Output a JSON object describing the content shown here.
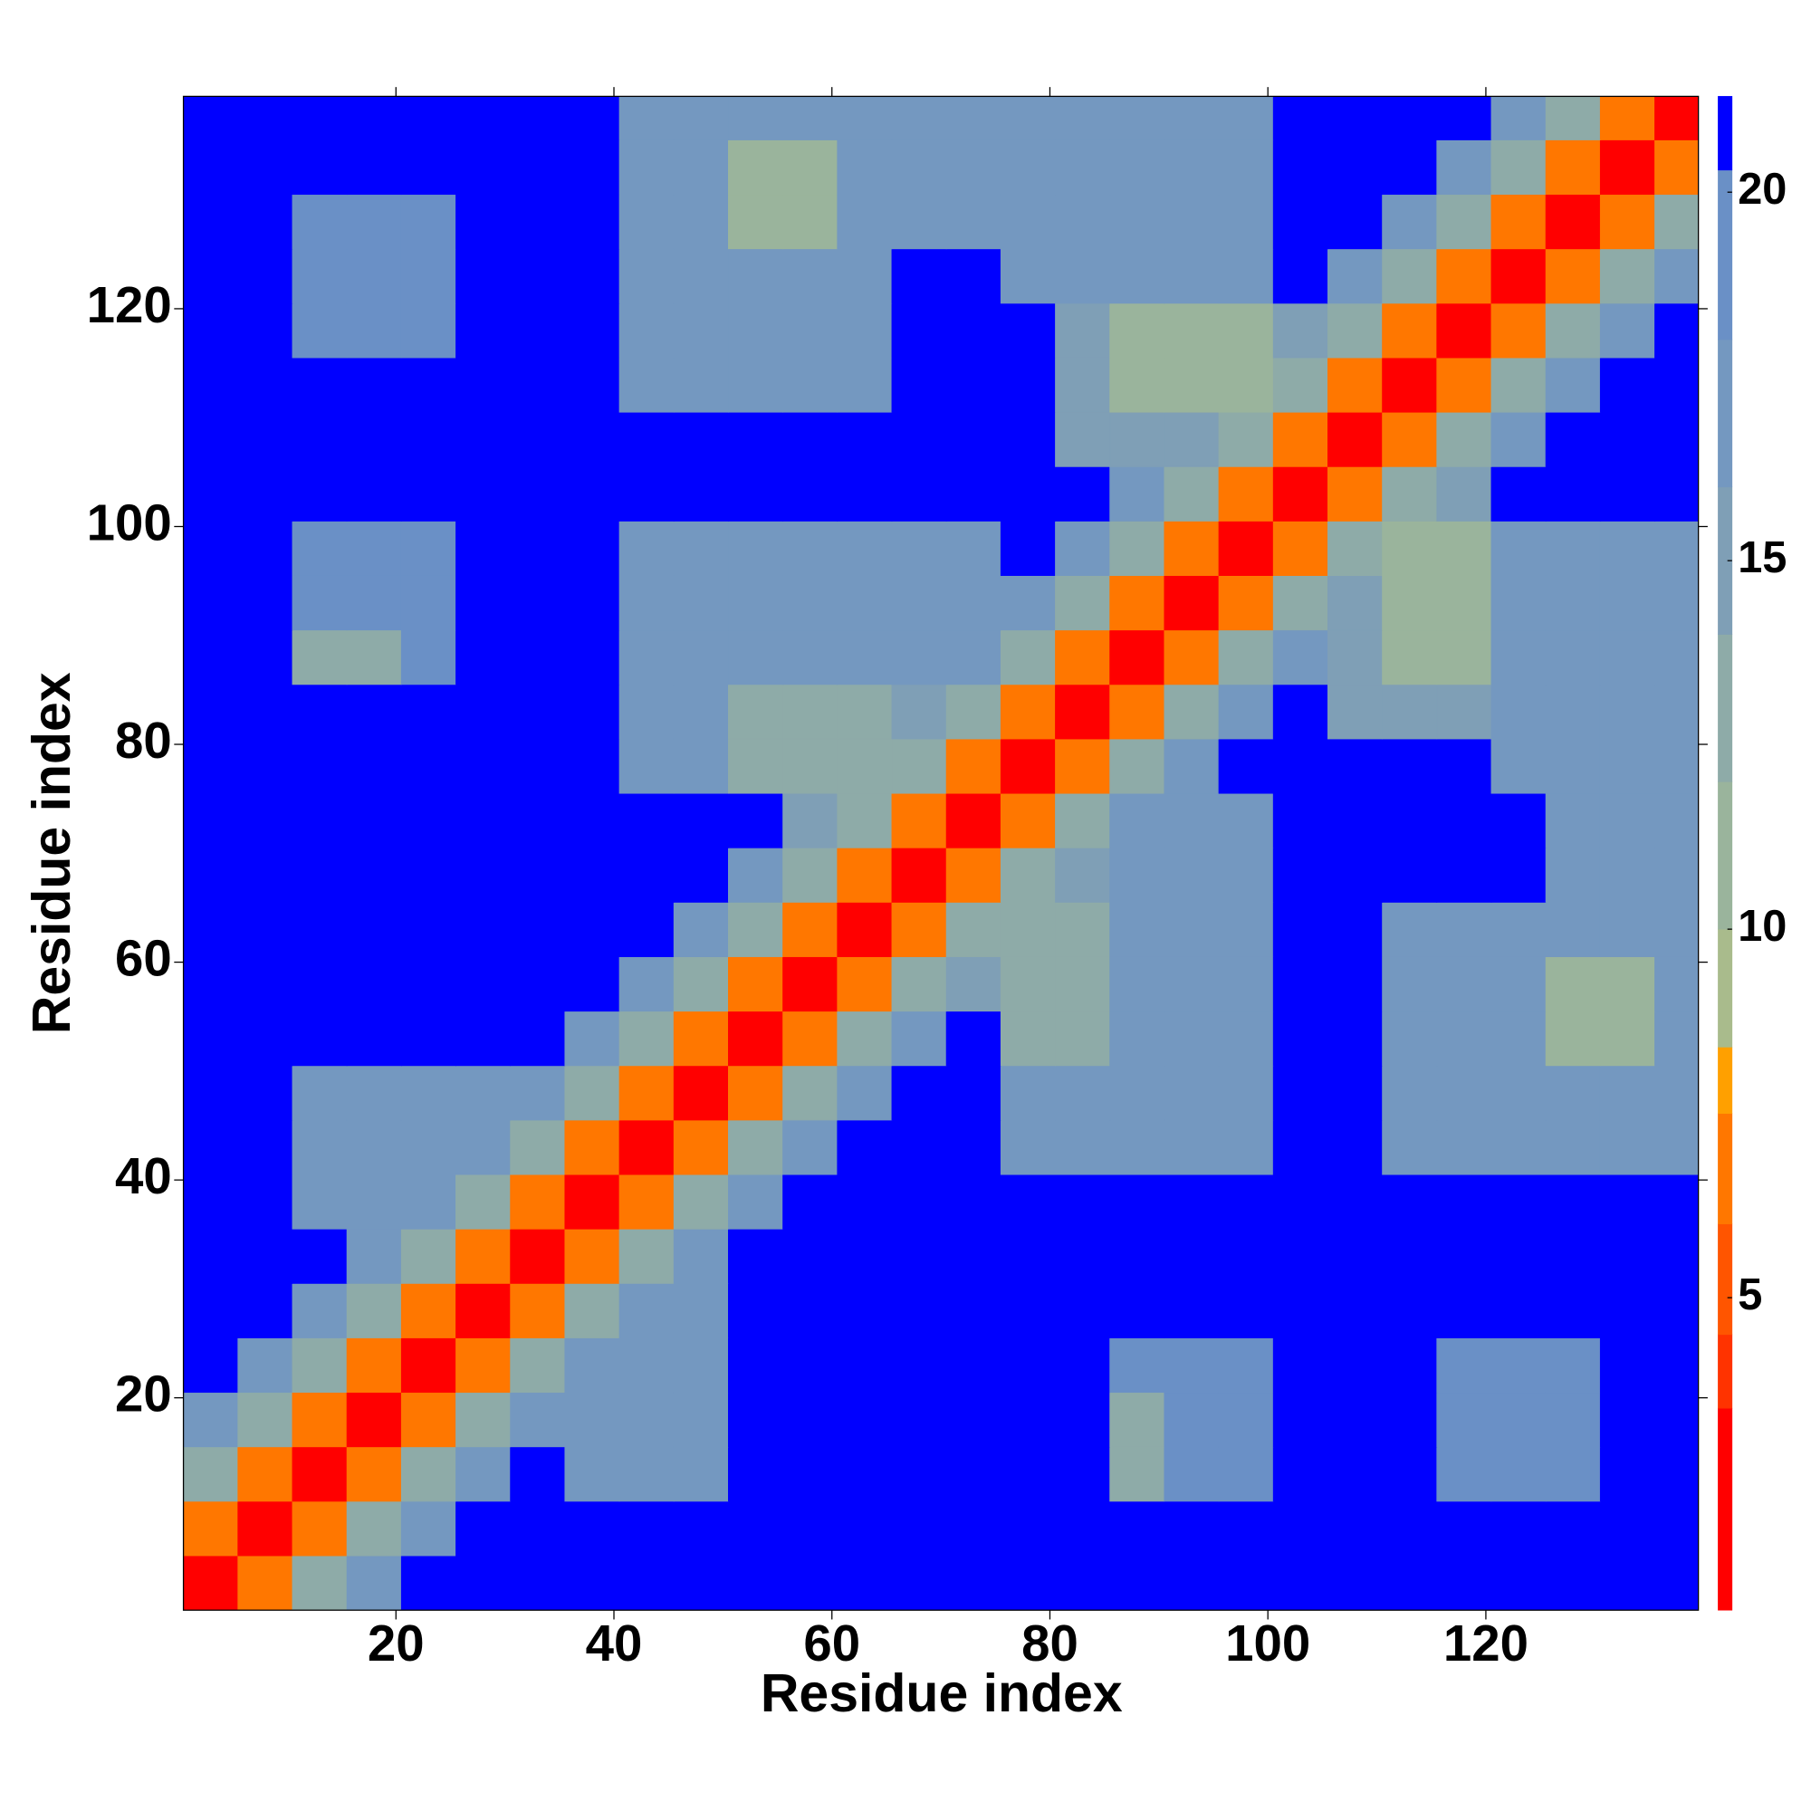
{
  "chart_data": {
    "type": "heatmap",
    "x_label": "Residue index",
    "y_label": "Residue index",
    "x": [
      3,
      8,
      13,
      18,
      23,
      28,
      33,
      38,
      43,
      48,
      53,
      58,
      63,
      68,
      73,
      78,
      83,
      88,
      93,
      98,
      103,
      108,
      113,
      118,
      123,
      128,
      133,
      138
    ],
    "y": [
      3,
      8,
      13,
      18,
      23,
      28,
      33,
      38,
      43,
      48,
      53,
      58,
      63,
      68,
      73,
      78,
      83,
      88,
      93,
      98,
      103,
      108,
      113,
      118,
      123,
      128,
      133,
      138
    ],
    "z": [
      [
        3,
        7,
        12,
        17,
        22,
        22,
        22,
        22,
        22,
        22,
        22,
        22,
        22,
        22,
        22,
        22,
        22,
        22,
        22,
        22,
        22,
        22,
        22,
        22,
        22,
        22,
        22,
        22
      ],
      [
        7,
        3,
        7,
        12,
        17,
        22,
        22,
        22,
        22,
        22,
        22,
        22,
        22,
        22,
        22,
        22,
        22,
        22,
        22,
        22,
        22,
        22,
        22,
        22,
        22,
        22,
        22,
        22
      ],
      [
        12,
        7,
        3,
        7,
        12,
        17,
        22,
        17,
        17,
        17,
        22,
        22,
        22,
        22,
        22,
        22,
        22,
        12,
        18,
        18,
        22,
        22,
        22,
        19,
        19,
        19,
        22,
        22
      ],
      [
        17,
        12,
        7,
        3,
        7,
        12,
        17,
        17,
        17,
        17,
        22,
        22,
        22,
        22,
        22,
        22,
        22,
        12,
        18,
        18,
        22,
        22,
        22,
        19,
        19,
        19,
        22,
        22
      ],
      [
        22,
        17,
        12,
        7,
        3,
        7,
        12,
        17,
        17,
        17,
        22,
        22,
        22,
        22,
        22,
        22,
        22,
        18,
        18,
        18,
        22,
        22,
        22,
        19,
        19,
        19,
        22,
        22
      ],
      [
        22,
        22,
        17,
        12,
        7,
        3,
        7,
        12,
        17,
        17,
        22,
        22,
        22,
        22,
        22,
        22,
        22,
        22,
        22,
        22,
        22,
        22,
        22,
        22,
        22,
        22,
        22,
        22
      ],
      [
        22,
        22,
        22,
        17,
        12,
        7,
        3,
        7,
        12,
        17,
        22,
        22,
        22,
        22,
        22,
        22,
        22,
        22,
        22,
        22,
        22,
        22,
        22,
        22,
        22,
        22,
        22,
        22
      ],
      [
        22,
        22,
        17,
        17,
        17,
        12,
        7,
        3,
        7,
        12,
        17,
        22,
        22,
        22,
        22,
        22,
        22,
        22,
        22,
        22,
        22,
        22,
        22,
        22,
        22,
        22,
        22,
        22
      ],
      [
        22,
        22,
        17,
        17,
        17,
        17,
        12,
        7,
        3,
        7,
        12,
        17,
        22,
        22,
        22,
        16,
        16,
        16,
        16,
        16,
        22,
        22,
        17,
        17,
        17,
        17,
        17,
        17
      ],
      [
        22,
        22,
        17,
        17,
        17,
        17,
        17,
        12,
        7,
        3,
        7,
        12,
        17,
        22,
        22,
        16,
        16,
        16,
        16,
        16,
        22,
        22,
        17,
        17,
        17,
        17,
        17,
        17
      ],
      [
        22,
        22,
        22,
        22,
        22,
        22,
        22,
        17,
        12,
        7,
        3,
        7,
        12,
        17,
        22,
        12,
        12,
        16,
        16,
        16,
        22,
        22,
        17,
        17,
        17,
        10,
        10,
        17
      ],
      [
        22,
        22,
        22,
        22,
        22,
        22,
        22,
        22,
        17,
        12,
        7,
        3,
        7,
        12,
        15,
        12,
        12,
        16,
        16,
        16,
        22,
        22,
        17,
        17,
        17,
        10,
        10,
        17
      ],
      [
        22,
        22,
        22,
        22,
        22,
        22,
        22,
        22,
        22,
        17,
        12,
        7,
        3,
        7,
        12,
        12,
        12,
        16,
        16,
        16,
        22,
        22,
        17,
        17,
        17,
        17,
        17,
        17
      ],
      [
        22,
        22,
        22,
        22,
        22,
        22,
        22,
        22,
        22,
        22,
        17,
        12,
        7,
        3,
        7,
        12,
        15,
        16,
        16,
        16,
        22,
        22,
        22,
        22,
        22,
        17,
        17,
        17
      ],
      [
        22,
        22,
        22,
        22,
        22,
        22,
        22,
        22,
        22,
        22,
        22,
        15,
        12,
        7,
        3,
        7,
        12,
        16,
        16,
        16,
        22,
        22,
        22,
        22,
        22,
        17,
        17,
        17
      ],
      [
        22,
        22,
        22,
        22,
        22,
        22,
        22,
        22,
        16,
        16,
        12,
        12,
        12,
        12,
        7,
        3,
        7,
        12,
        17,
        22,
        22,
        22,
        22,
        22,
        17,
        17,
        17,
        17
      ],
      [
        22,
        22,
        22,
        22,
        22,
        22,
        22,
        22,
        16,
        16,
        12,
        12,
        12,
        15,
        12,
        7,
        3,
        7,
        12,
        17,
        22,
        15,
        15,
        15,
        17,
        17,
        17,
        17
      ],
      [
        22,
        22,
        12,
        12,
        18,
        22,
        22,
        22,
        16,
        16,
        16,
        16,
        16,
        16,
        16,
        12,
        7,
        3,
        7,
        12,
        17,
        15,
        11,
        11,
        17,
        17,
        17,
        17
      ],
      [
        22,
        22,
        18,
        18,
        18,
        22,
        22,
        22,
        16,
        16,
        16,
        16,
        16,
        16,
        16,
        17,
        12,
        7,
        3,
        7,
        12,
        15,
        11,
        11,
        17,
        17,
        17,
        17
      ],
      [
        22,
        22,
        18,
        18,
        18,
        22,
        22,
        22,
        16,
        16,
        16,
        16,
        16,
        16,
        16,
        22,
        17,
        12,
        7,
        3,
        7,
        12,
        11,
        11,
        17,
        17,
        17,
        17
      ],
      [
        22,
        22,
        22,
        22,
        22,
        22,
        22,
        22,
        22,
        22,
        22,
        22,
        22,
        22,
        22,
        22,
        22,
        17,
        12,
        7,
        3,
        7,
        12,
        15,
        22,
        22,
        22,
        22
      ],
      [
        22,
        22,
        22,
        22,
        22,
        22,
        22,
        22,
        22,
        22,
        22,
        22,
        22,
        22,
        22,
        22,
        15,
        15,
        15,
        12,
        7,
        3,
        7,
        12,
        17,
        22,
        22,
        22
      ],
      [
        22,
        22,
        22,
        22,
        22,
        22,
        22,
        22,
        17,
        17,
        17,
        17,
        17,
        22,
        22,
        22,
        15,
        11,
        11,
        11,
        12,
        7,
        3,
        7,
        12,
        17,
        22,
        22
      ],
      [
        22,
        22,
        19,
        19,
        19,
        22,
        22,
        22,
        17,
        17,
        17,
        17,
        17,
        22,
        22,
        22,
        15,
        11,
        11,
        11,
        15,
        12,
        7,
        3,
        7,
        12,
        17,
        22
      ],
      [
        22,
        22,
        19,
        19,
        19,
        22,
        22,
        22,
        17,
        17,
        17,
        17,
        17,
        22,
        22,
        17,
        17,
        17,
        17,
        17,
        22,
        17,
        12,
        7,
        3,
        7,
        12,
        17
      ],
      [
        22,
        22,
        19,
        19,
        19,
        22,
        22,
        22,
        17,
        17,
        10,
        10,
        17,
        17,
        17,
        17,
        17,
        17,
        17,
        17,
        22,
        22,
        17,
        12,
        7,
        3,
        7,
        12
      ],
      [
        22,
        22,
        22,
        22,
        22,
        22,
        22,
        22,
        17,
        17,
        10,
        10,
        17,
        17,
        17,
        17,
        17,
        17,
        17,
        17,
        22,
        22,
        22,
        17,
        12,
        7,
        3,
        7
      ],
      [
        22,
        22,
        22,
        22,
        22,
        22,
        22,
        22,
        17,
        17,
        17,
        17,
        17,
        17,
        17,
        17,
        17,
        17,
        17,
        17,
        22,
        22,
        22,
        22,
        17,
        12,
        7,
        3
      ]
    ],
    "xlim": [
      0.5,
      139.5
    ],
    "ylim": [
      0.5,
      139.5
    ],
    "xticks": [
      20,
      40,
      60,
      80,
      100,
      120
    ],
    "yticks": [
      20,
      40,
      60,
      80,
      100,
      120
    ],
    "clim": [
      0.76,
      21.3
    ],
    "cticks": [
      5,
      10,
      15,
      20
    ],
    "colorscale": [
      {
        "from": 0.76,
        "color": "#ff0000"
      },
      {
        "from": 3.5,
        "color": "#ff3300"
      },
      {
        "from": 4.5,
        "color": "#ff5500"
      },
      {
        "from": 6,
        "color": "#ff7700"
      },
      {
        "from": 7.5,
        "color": "#ffa000"
      },
      {
        "from": 8.4,
        "color": "#a9bb8c"
      },
      {
        "from": 10,
        "color": "#9ab49c"
      },
      {
        "from": 12,
        "color": "#8eaba8"
      },
      {
        "from": 14,
        "color": "#7f9fb6"
      },
      {
        "from": 16,
        "color": "#7498c0"
      },
      {
        "from": 18,
        "color": "#6a90c6"
      },
      {
        "from": 20.3,
        "color": "#0000ff"
      }
    ]
  }
}
